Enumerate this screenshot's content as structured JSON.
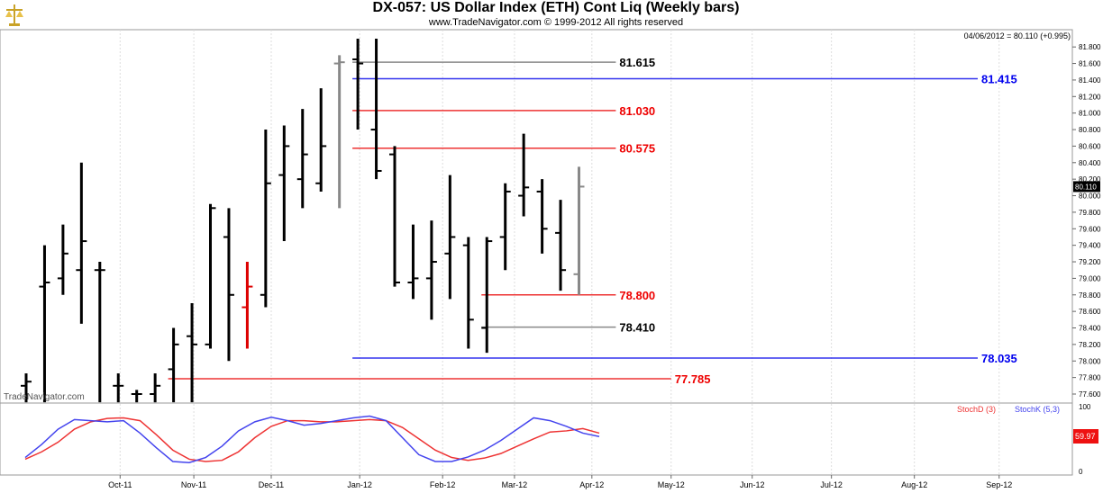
{
  "header": {
    "title": "DX-057:  US Dollar Index (ETH) Cont Liq  (Weekly bars)",
    "copyright": "www.TradeNavigator.com © 1999-2012 All rights reserved",
    "last_quote": "04/06/2012 = 80.110 (+0.995)",
    "watermark": "TradeNavigator.com"
  },
  "chart_data": {
    "type": "ohlc",
    "x_ticks": [
      "Oct-11",
      "Nov-11",
      "Dec-11",
      "Jan-12",
      "Feb-12",
      "Mar-12",
      "Apr-12",
      "May-12",
      "Jun-12",
      "Jul-12",
      "Aug-12",
      "Sep-12"
    ],
    "price_ticks": [
      "81.800",
      "81.600",
      "81.400",
      "81.200",
      "81.000",
      "80.800",
      "80.600",
      "80.400",
      "80.200",
      "80.000",
      "79.800",
      "79.600",
      "79.400",
      "79.200",
      "79.000",
      "78.800",
      "78.600",
      "78.400",
      "78.200",
      "78.000",
      "77.800",
      "77.600"
    ],
    "ylim": [
      77.6,
      81.9
    ],
    "last_price_label": "80.110",
    "bars": [
      {
        "week": 0,
        "high": 77.85,
        "low": 77.5,
        "open": 77.7,
        "close": 77.75,
        "color": "#000000"
      },
      {
        "week": 1,
        "high": 79.4,
        "low": 77.5,
        "open": 78.9,
        "close": 78.95,
        "color": "#000000"
      },
      {
        "week": 2,
        "high": 79.65,
        "low": 78.8,
        "open": 79.0,
        "close": 79.3,
        "color": "#000000"
      },
      {
        "week": 3,
        "high": 80.4,
        "low": 78.45,
        "open": 79.1,
        "close": 79.45,
        "color": "#000000"
      },
      {
        "week": 4,
        "high": 79.2,
        "low": 77.5,
        "open": 79.1,
        "close": 79.1,
        "color": "#000000"
      },
      {
        "week": 5,
        "high": 77.85,
        "low": 77.5,
        "open": 77.7,
        "close": 77.7,
        "color": "#000000"
      },
      {
        "week": 6,
        "high": 77.65,
        "low": 77.5,
        "open": 77.6,
        "close": 77.6,
        "color": "#000000"
      },
      {
        "week": 7,
        "high": 77.85,
        "low": 77.5,
        "open": 77.6,
        "close": 77.7,
        "color": "#000000"
      },
      {
        "week": 8,
        "high": 78.4,
        "low": 77.5,
        "open": 77.9,
        "close": 78.2,
        "color": "#000000"
      },
      {
        "week": 9,
        "high": 78.7,
        "low": 77.5,
        "open": 78.3,
        "close": 78.2,
        "color": "#000000"
      },
      {
        "week": 10,
        "high": 79.9,
        "low": 78.15,
        "open": 78.2,
        "close": 79.85,
        "color": "#000000"
      },
      {
        "week": 11,
        "high": 79.85,
        "low": 78.0,
        "open": 79.5,
        "close": 78.8,
        "color": "#000000"
      },
      {
        "week": 12,
        "high": 79.2,
        "low": 78.15,
        "open": 78.65,
        "close": 78.9,
        "color": "#dd0000"
      },
      {
        "week": 13,
        "high": 80.8,
        "low": 78.65,
        "open": 78.8,
        "close": 80.15,
        "color": "#000000"
      },
      {
        "week": 14,
        "high": 80.85,
        "low": 79.45,
        "open": 80.25,
        "close": 80.6,
        "color": "#000000"
      },
      {
        "week": 15,
        "high": 81.05,
        "low": 79.85,
        "open": 80.2,
        "close": 80.5,
        "color": "#000000"
      },
      {
        "week": 16,
        "high": 81.3,
        "low": 80.05,
        "open": 80.15,
        "close": 80.6,
        "color": "#000000"
      },
      {
        "week": 17,
        "high": 81.7,
        "low": 79.85,
        "open": 81.6,
        "close": 81.615,
        "color": "#888888"
      },
      {
        "week": 18,
        "high": 81.9,
        "low": 80.8,
        "open": 81.65,
        "close": 81.6,
        "color": "#000000"
      },
      {
        "week": 19,
        "high": 81.9,
        "low": 80.2,
        "open": 80.8,
        "close": 80.3,
        "color": "#000000"
      },
      {
        "week": 20,
        "high": 80.6,
        "low": 78.9,
        "open": 80.5,
        "close": 78.95,
        "color": "#000000"
      },
      {
        "week": 21,
        "high": 79.65,
        "low": 78.75,
        "open": 78.95,
        "close": 79.0,
        "color": "#000000"
      },
      {
        "week": 22,
        "high": 79.7,
        "low": 78.5,
        "open": 79.0,
        "close": 79.2,
        "color": "#000000"
      },
      {
        "week": 23,
        "high": 80.25,
        "low": 78.75,
        "open": 79.3,
        "close": 79.5,
        "color": "#000000"
      },
      {
        "week": 24,
        "high": 79.5,
        "low": 78.15,
        "open": 79.4,
        "close": 78.5,
        "color": "#000000"
      },
      {
        "week": 25,
        "high": 79.5,
        "low": 78.1,
        "open": 78.4,
        "close": 79.45,
        "color": "#000000"
      },
      {
        "week": 26,
        "high": 80.15,
        "low": 79.1,
        "open": 79.5,
        "close": 80.05,
        "color": "#000000"
      },
      {
        "week": 27,
        "high": 80.75,
        "low": 79.75,
        "open": 80.0,
        "close": 80.1,
        "color": "#000000"
      },
      {
        "week": 28,
        "high": 80.2,
        "low": 79.3,
        "open": 80.05,
        "close": 79.6,
        "color": "#000000"
      },
      {
        "week": 29,
        "high": 79.95,
        "low": 78.85,
        "open": 79.55,
        "close": 79.1,
        "color": "#000000"
      },
      {
        "week": 30,
        "high": 80.35,
        "low": 78.8,
        "open": 79.05,
        "close": 80.11,
        "color": "#888888"
      }
    ],
    "levels": [
      {
        "value": 81.615,
        "label": "81.615",
        "color": "#888888",
        "label_color": "#000000",
        "from_week": 18,
        "to_week": 32
      },
      {
        "value": 81.415,
        "label": "81.415",
        "color": "#3333ee",
        "label_color": "#0000ee",
        "from_week": 18,
        "to_week": 52
      },
      {
        "value": 81.03,
        "label": "81.030",
        "color": "#ee3333",
        "label_color": "#ee0000",
        "from_week": 18,
        "to_week": 32
      },
      {
        "value": 80.575,
        "label": "80.575",
        "color": "#ee3333",
        "label_color": "#ee0000",
        "from_week": 18,
        "to_week": 32
      },
      {
        "value": 78.8,
        "label": "78.800",
        "color": "#ee3333",
        "label_color": "#ee0000",
        "from_week": 25,
        "to_week": 32
      },
      {
        "value": 78.41,
        "label": "78.410",
        "color": "#888888",
        "label_color": "#000000",
        "from_week": 25,
        "to_week": 32
      },
      {
        "value": 78.035,
        "label": "78.035",
        "color": "#3333ee",
        "label_color": "#0000ee",
        "from_week": 18,
        "to_week": 52
      },
      {
        "value": 77.785,
        "label": "77.785",
        "color": "#ee3333",
        "label_color": "#ee0000",
        "from_week": 8,
        "to_week": 35
      }
    ],
    "oscillator": {
      "legend": [
        "StochD (3)",
        "StochK (5,3)"
      ],
      "ticks": [
        "100",
        "0"
      ],
      "last_value_label": "59.97",
      "stoch_d": {
        "name": "StochD (3)",
        "color": "#ee3333",
        "values": [
          12,
          25,
          42,
          65,
          78,
          84,
          85,
          80,
          55,
          28,
          12,
          8,
          10,
          25,
          50,
          70,
          80,
          80,
          78,
          78,
          80,
          82,
          80,
          68,
          48,
          28,
          15,
          10,
          14,
          22,
          35,
          48,
          60,
          62,
          66,
          58
        ]
      },
      "stoch_k": {
        "name": "StochK (5,3)",
        "color": "#4444ee",
        "values": [
          15,
          38,
          65,
          82,
          80,
          78,
          80,
          58,
          32,
          8,
          6,
          15,
          35,
          62,
          78,
          86,
          80,
          72,
          75,
          80,
          85,
          88,
          80,
          50,
          20,
          8,
          8,
          16,
          28,
          45,
          65,
          85,
          80,
          70,
          58,
          52
        ]
      }
    }
  }
}
